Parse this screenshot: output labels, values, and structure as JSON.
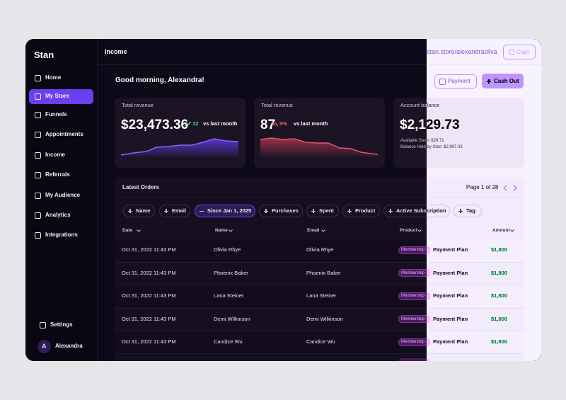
{
  "brand": "Stan",
  "nav": [
    "Home",
    "My Store",
    "Funnels",
    "Appointments",
    "Income",
    "Referrals",
    "My Audience",
    "Analytics",
    "Integrations"
  ],
  "settings": "Settings",
  "user": {
    "initial": "A",
    "name": "Alexandra"
  },
  "header": {
    "title": "Income",
    "link": "stan.store/alexandrasilva",
    "copy": "Copy"
  },
  "greeting": "Good morning, Alexandra!",
  "buttons": {
    "payment": "Payment",
    "cashout": "Cash Out"
  },
  "cards": [
    {
      "label": "Total revenue",
      "value": "$23,473.36",
      "change": "12",
      "compare": "vs last month"
    },
    {
      "label": "Total revenue",
      "value": "87",
      "change": "5%",
      "compare": "vs last month"
    },
    {
      "label": "Account balance",
      "value": "$2,129.73",
      "lines": [
        "Available Soon: $29.71",
        "Balance Held by Stan: $2,907.03"
      ]
    }
  ],
  "orders": {
    "title": "Latest Orders",
    "page": "Page 1 of 28",
    "filters": [
      "Name",
      "Email",
      "Since Jan 1, 2025",
      "Purchases",
      "Spent",
      "Product",
      "Active Subscription",
      "Tag"
    ],
    "columns": [
      "Date",
      "Name",
      "Email",
      "Product",
      "Amount"
    ],
    "rows": [
      [
        "Oct 31, 2022 11:43 PM",
        "Olivia Rhye",
        "Olivia Rhye",
        "Membership",
        "Payment Plan",
        "$1,800"
      ],
      [
        "Oct 31, 2022 11:43 PM",
        "Phoenix Baker",
        "Phoenix Baker",
        "Membership",
        "Payment Plan",
        "$1,800"
      ],
      [
        "Oct 31, 2022 11:43 PM",
        "Lana Steiner",
        "Lana Steiner",
        "Membership",
        "Payment Plan",
        "$1,800"
      ],
      [
        "Oct 31, 2022 11:43 PM",
        "Demi Wilkinson",
        "Demi Wilkinson",
        "Membership",
        "Payment Plan",
        "$1,800"
      ],
      [
        "Oct 31, 2022 11:43 PM",
        "Candice Wu",
        "Candice Wu",
        "Membership",
        "Payment Plan",
        "$1,800"
      ]
    ]
  }
}
